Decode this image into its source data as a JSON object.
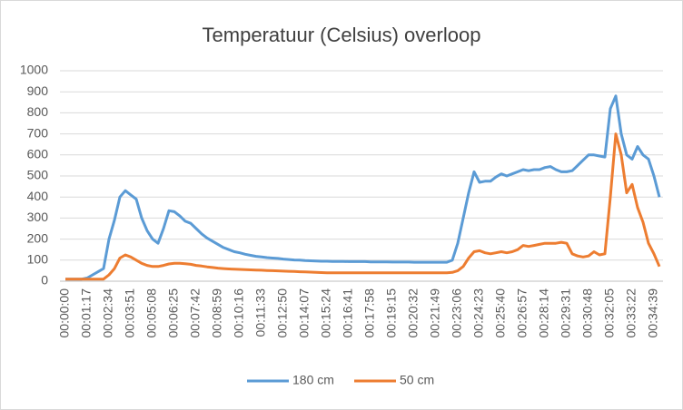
{
  "chart_data": {
    "type": "line",
    "title": "Temperatuur  (Celsius) overloop",
    "categories": [
      "00:00:00",
      null,
      null,
      null,
      "00:01:17",
      null,
      null,
      null,
      "00:02:34",
      null,
      null,
      null,
      "00:03:51",
      null,
      null,
      null,
      "00:05:08",
      null,
      null,
      null,
      "00:06:25",
      null,
      null,
      null,
      "00:07:42",
      null,
      null,
      null,
      "00:08:59",
      null,
      null,
      null,
      "00:10:16",
      null,
      null,
      null,
      "00:11:33",
      null,
      null,
      null,
      "00:12:50",
      null,
      null,
      null,
      "00:14:07",
      null,
      null,
      null,
      "00:15:24",
      null,
      null,
      null,
      "00:16:41",
      null,
      null,
      null,
      "00:17:58",
      null,
      null,
      null,
      "00:19:15",
      null,
      null,
      null,
      "00:20:32",
      null,
      null,
      null,
      "00:21:49",
      null,
      null,
      null,
      "00:23:06",
      null,
      null,
      null,
      "00:24:23",
      null,
      null,
      null,
      "00:25:40",
      null,
      null,
      null,
      "00:26:57",
      null,
      null,
      null,
      "00:28:14",
      null,
      null,
      null,
      "00:29:31",
      null,
      null,
      null,
      "00:30:48",
      null,
      null,
      null,
      "00:32:05",
      null,
      null,
      null,
      "00:33:22",
      null,
      null,
      null,
      "00:34:39",
      null
    ],
    "series": [
      {
        "name": "180 cm",
        "color": "#5b9bd5",
        "values": [
          10,
          10,
          10,
          10,
          15,
          30,
          45,
          60,
          200,
          290,
          400,
          430,
          410,
          390,
          300,
          240,
          200,
          180,
          250,
          335,
          330,
          310,
          285,
          275,
          250,
          225,
          205,
          190,
          175,
          160,
          150,
          140,
          135,
          128,
          123,
          118,
          115,
          112,
          110,
          108,
          105,
          103,
          101,
          100,
          98,
          97,
          96,
          95,
          95,
          94,
          94,
          94,
          93,
          93,
          93,
          93,
          92,
          92,
          92,
          92,
          91,
          91,
          91,
          91,
          90,
          90,
          90,
          90,
          90,
          90,
          90,
          100,
          180,
          300,
          420,
          520,
          470,
          475,
          475,
          495,
          510,
          500,
          510,
          520,
          530,
          525,
          530,
          530,
          540,
          545,
          530,
          520,
          520,
          525,
          550,
          575,
          600,
          600,
          595,
          590,
          820,
          880,
          700,
          600,
          580,
          640,
          600,
          580,
          500,
          400
        ]
      },
      {
        "name": "50 cm",
        "color": "#ed7d31",
        "values": [
          10,
          10,
          10,
          10,
          10,
          10,
          10,
          10,
          30,
          60,
          110,
          125,
          115,
          100,
          85,
          75,
          70,
          70,
          75,
          82,
          85,
          85,
          83,
          80,
          75,
          72,
          68,
          65,
          62,
          60,
          58,
          57,
          56,
          55,
          54,
          53,
          52,
          51,
          50,
          49,
          48,
          47,
          46,
          45,
          44,
          43,
          42,
          41,
          40,
          40,
          40,
          40,
          40,
          40,
          40,
          40,
          40,
          40,
          40,
          40,
          40,
          40,
          40,
          40,
          40,
          40,
          40,
          40,
          40,
          40,
          40,
          42,
          50,
          70,
          110,
          140,
          145,
          135,
          130,
          135,
          140,
          135,
          140,
          150,
          170,
          165,
          170,
          175,
          180,
          180,
          180,
          185,
          180,
          130,
          120,
          115,
          120,
          140,
          125,
          130,
          400,
          700,
          600,
          420,
          460,
          350,
          280,
          180,
          130,
          70
        ]
      }
    ],
    "ylim": [
      0,
      1000
    ],
    "yticks": [
      0,
      100,
      200,
      300,
      400,
      500,
      600,
      700,
      800,
      900,
      1000
    ],
    "grid": true,
    "legend": "bottom"
  }
}
